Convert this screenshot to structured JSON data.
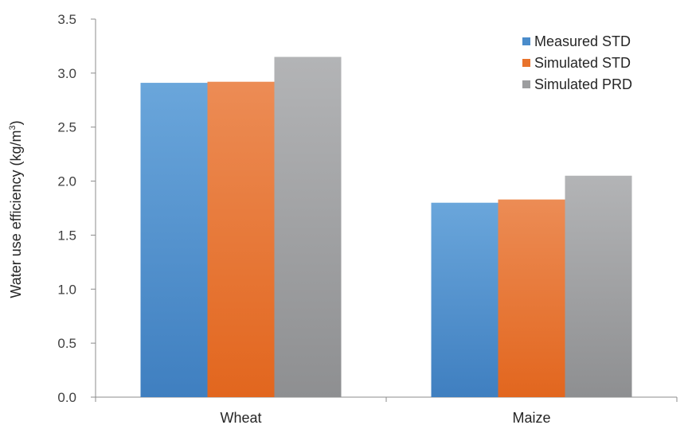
{
  "chart_data": {
    "type": "bar",
    "title": "",
    "xlabel": "",
    "ylabel": "Water use efficiency (kg/m",
    "ylabel_sup": "3",
    "ylabel_close": ")",
    "ylim": [
      0,
      3.5
    ],
    "yticks": [
      "0.0",
      "0.5",
      "1.0",
      "1.5",
      "2.0",
      "2.5",
      "3.0",
      "3.5"
    ],
    "categories": [
      "Wheat",
      "Maize"
    ],
    "series": [
      {
        "name": "Measured STD",
        "values": [
          2.91,
          1.8
        ],
        "color": "#4a8ccb"
      },
      {
        "name": "Simulated STD",
        "values": [
          2.92,
          1.83
        ],
        "color": "#e8732c"
      },
      {
        "name": "Simulated PRD",
        "values": [
          3.15,
          2.05
        ],
        "color": "#9c9d9f"
      }
    ],
    "legend_position": "top-right",
    "grid": false
  }
}
